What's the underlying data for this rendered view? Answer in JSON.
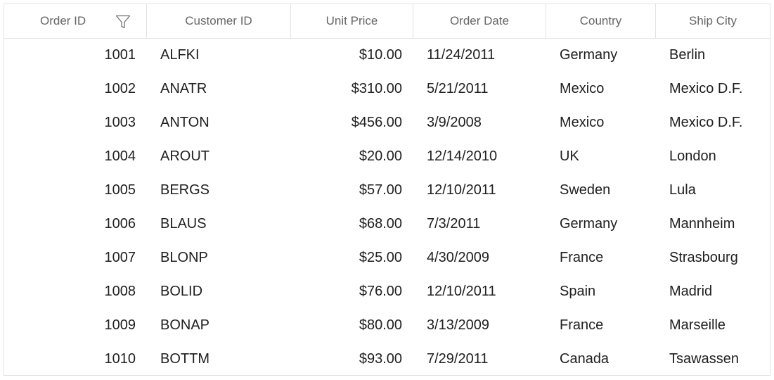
{
  "grid": {
    "columns": [
      "Order ID",
      "Customer ID",
      "Unit Price",
      "Order Date",
      "Country",
      "Ship City"
    ],
    "rows": [
      [
        "1001",
        "ALFKI",
        "$10.00",
        "11/24/2011",
        "Germany",
        "Berlin"
      ],
      [
        "1002",
        "ANATR",
        "$310.00",
        "5/21/2011",
        "Mexico",
        "Mexico D.F."
      ],
      [
        "1003",
        "ANTON",
        "$456.00",
        "3/9/2008",
        "Mexico",
        "Mexico D.F."
      ],
      [
        "1004",
        "AROUT",
        "$20.00",
        "12/14/2010",
        "UK",
        "London"
      ],
      [
        "1005",
        "BERGS",
        "$57.00",
        "12/10/2011",
        "Sweden",
        "Lula"
      ],
      [
        "1006",
        "BLAUS",
        "$68.00",
        "7/3/2011",
        "Germany",
        "Mannheim"
      ],
      [
        "1007",
        "BLONP",
        "$25.00",
        "4/30/2009",
        "France",
        "Strasbourg"
      ],
      [
        "1008",
        "BOLID",
        "$76.00",
        "12/10/2011",
        "Spain",
        "Madrid"
      ],
      [
        "1009",
        "BONAP",
        "$80.00",
        "3/13/2009",
        "France",
        "Marseille"
      ],
      [
        "1010",
        "BOTTM",
        "$93.00",
        "7/29/2011",
        "Canada",
        "Tsawassen"
      ]
    ],
    "filter_icon": "funnel-filter-icon",
    "colors": {
      "border": "#e3e3e3",
      "header_text": "#666666",
      "cell_text": "#202020",
      "icon_stroke": "#707070"
    }
  }
}
